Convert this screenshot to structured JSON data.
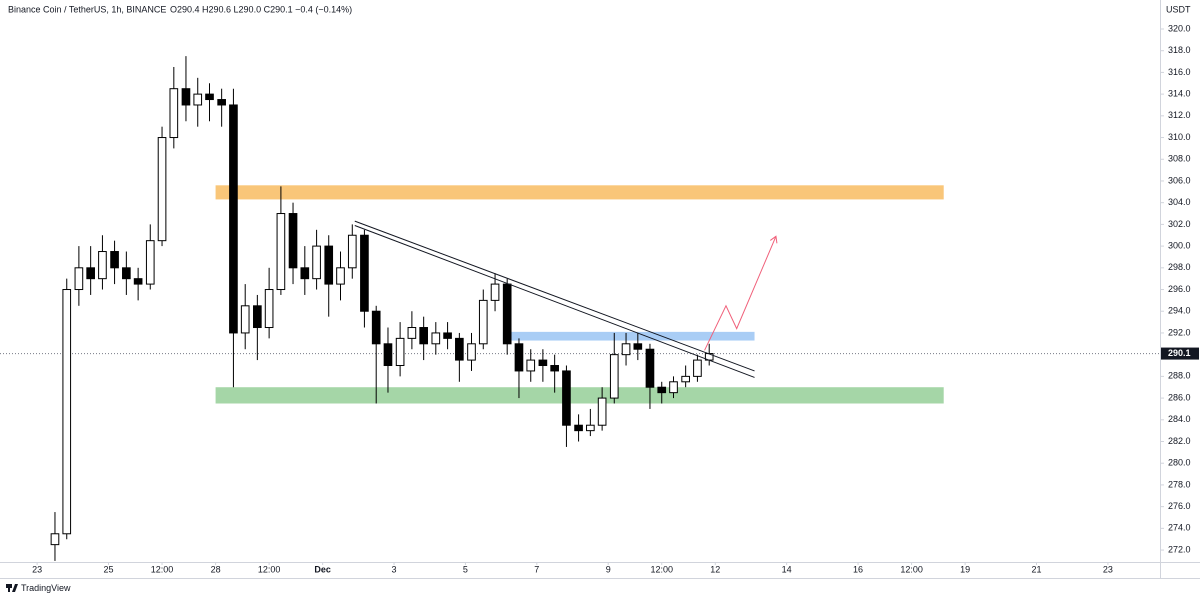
{
  "chart_data": {
    "type": "candlestick",
    "title": "Binance Coin / TetherUS, 1h, BINANCE",
    "ohlc_text": "O290.4 H290.6 L290.0 C290.1 −0.4 (−0.14%)",
    "y_axis_label": "USDT",
    "footer": "TradingView",
    "up_color": "#ffffff",
    "down_color": "#000000",
    "wick_color": "#000000",
    "x": [
      23.5,
      23.83,
      24.17,
      24.5,
      24.83,
      25.17,
      25.5,
      25.83,
      26.17,
      26.5,
      26.83,
      27.17,
      27.5,
      27.83,
      28.17,
      28.5,
      28.83,
      29.17,
      29.5,
      29.83,
      30.17,
      30.5,
      30.83,
      31.17,
      31.5,
      31.83,
      32.17,
      32.5,
      32.83,
      33.17,
      33.5,
      33.83,
      34.17,
      34.5,
      34.83,
      35.17,
      35.5,
      35.83,
      36.17,
      36.5,
      36.83,
      37.17,
      37.5,
      37.83,
      38.17,
      38.5,
      38.83,
      39.17,
      39.5,
      39.83,
      40.17,
      40.5,
      40.83,
      41.17,
      41.5,
      41.83
    ],
    "open": [
      272.5,
      273.5,
      296,
      298,
      297,
      299.5,
      298,
      297,
      296.5,
      300.5,
      310,
      314.5,
      313,
      314,
      313.5,
      313,
      292,
      294.5,
      292.5,
      296,
      303,
      298,
      297,
      300,
      296.5,
      298,
      301,
      294,
      291,
      289,
      291.5,
      292.5,
      291,
      292,
      291.5,
      289.5,
      291,
      295,
      296.5,
      291,
      288.5,
      289.5,
      289,
      288.5,
      283.5,
      283,
      283.5,
      286,
      290,
      291,
      290.5,
      287,
      286.5,
      287.5,
      288,
      289.5
    ],
    "high": [
      275.5,
      297,
      300,
      300,
      301,
      300.5,
      299.5,
      298,
      302,
      311,
      316.5,
      317.5,
      315.5,
      315,
      314.5,
      314.5,
      296.5,
      295.5,
      298,
      305.5,
      304,
      300,
      301.5,
      301,
      299.5,
      302,
      301.5,
      294.5,
      292.5,
      293,
      294,
      293.5,
      293,
      293,
      292,
      292,
      296,
      297.5,
      297,
      291.5,
      290.5,
      290.5,
      290,
      289,
      284.5,
      285,
      287,
      292,
      292,
      292,
      291,
      287.5,
      288,
      289,
      290,
      291
    ],
    "low": [
      271,
      273,
      294.5,
      295.5,
      296,
      296.5,
      295.5,
      295,
      296,
      300,
      309,
      311.5,
      311,
      311.5,
      311,
      287,
      290.5,
      289.5,
      291.5,
      295.5,
      296.5,
      295.5,
      296,
      293.5,
      295,
      297,
      292.5,
      285.5,
      286.5,
      288,
      290.5,
      289.5,
      290,
      290.5,
      287.5,
      288.5,
      290.5,
      294,
      290,
      286,
      287.5,
      287.5,
      286.5,
      281.5,
      282,
      282.5,
      283,
      285.5,
      289,
      289.5,
      285,
      285.5,
      286,
      287,
      287.5,
      289
    ],
    "close": [
      273.5,
      296,
      298,
      297,
      299.5,
      298,
      297,
      296.5,
      300.5,
      310,
      314.5,
      313,
      314,
      313.5,
      313,
      292,
      294.5,
      292.5,
      296,
      303,
      298,
      297,
      300,
      296.5,
      298,
      301,
      294,
      291,
      289,
      291.5,
      292.5,
      291,
      292,
      291.5,
      289.5,
      291,
      295,
      296.5,
      291,
      288.5,
      289.5,
      289,
      288.5,
      283.5,
      283,
      283.5,
      286,
      290,
      291,
      290.5,
      287,
      286.5,
      287.5,
      288,
      289.5,
      290.1
    ],
    "last_price": 290.1,
    "last_color": "#131722",
    "zones": [
      {
        "x": [
          28.0,
          48.4
        ],
        "y": [
          304.3,
          305.6
        ],
        "color": "#f9c679"
      },
      {
        "x": [
          28.0,
          48.4
        ],
        "y": [
          285.5,
          287.0
        ],
        "color": "#a5d6a7"
      },
      {
        "x": [
          36.05,
          43.1
        ],
        "y": [
          291.3,
          292.1
        ],
        "color": "#a9cdf5"
      }
    ],
    "trend_lines": [
      {
        "x": [
          31.9,
          43.1
        ],
        "y": [
          302.3,
          288.5
        ],
        "color": "#131722"
      },
      {
        "x": [
          31.9,
          43.1
        ],
        "y": [
          301.9,
          287.9
        ],
        "color": "#131722"
      }
    ],
    "projection": {
      "x": [
        41.7,
        42.3,
        42.6,
        43.7
      ],
      "y": [
        290.4,
        294.5,
        292.4,
        300.9
      ],
      "color": "#f0607a"
    },
    "xlim": [
      21.96,
      54.46
    ],
    "ylim": [
      270.9,
      322.67
    ],
    "xticks": [
      23,
      25,
      {
        "value": 26.5,
        "label": "12:00"
      },
      28,
      {
        "value": 29.5,
        "label": "12:00"
      },
      {
        "value": 31,
        "label": "Dec"
      },
      {
        "value": 33,
        "label": "3"
      },
      {
        "value": 35,
        "label": "5"
      },
      {
        "value": 37,
        "label": "7"
      },
      {
        "value": 39,
        "label": "9"
      },
      {
        "value": 40.5,
        "label": "12:00"
      },
      {
        "value": 42,
        "label": "12"
      },
      {
        "value": 44,
        "label": "14"
      },
      {
        "value": 46,
        "label": "16"
      },
      {
        "value": 47.5,
        "label": "12:00"
      },
      {
        "value": 49,
        "label": "19"
      },
      {
        "value": 51,
        "label": "21"
      },
      {
        "value": 53,
        "label": "23"
      }
    ],
    "yticks": [
      {
        "value": 272,
        "label": "272.0"
      },
      {
        "value": 274,
        "label": "274.0"
      },
      {
        "value": 276,
        "label": "276.0"
      },
      {
        "value": 278,
        "label": "278.0"
      },
      {
        "value": 280,
        "label": "280.0"
      },
      {
        "value": 282,
        "label": "282.0"
      },
      {
        "value": 284,
        "label": "284.0"
      },
      {
        "value": 286,
        "label": "286.0"
      },
      {
        "value": 288,
        "label": "288.0"
      },
      {
        "value": 290,
        "label": "290.0"
      },
      {
        "value": 292,
        "label": "292.0"
      },
      {
        "value": 294,
        "label": "294.0"
      },
      {
        "value": 296,
        "label": "296.0"
      },
      {
        "value": 298,
        "label": "298.0"
      },
      {
        "value": 300,
        "label": "300.0"
      },
      {
        "value": 302,
        "label": "302.0"
      },
      {
        "value": 304,
        "label": "304.0"
      },
      {
        "value": 306,
        "label": "306.0"
      },
      {
        "value": 308,
        "label": "308.0"
      },
      {
        "value": 310,
        "label": "310.0"
      },
      {
        "value": 312,
        "label": "312.0"
      },
      {
        "value": 314,
        "label": "314.0"
      },
      {
        "value": 316,
        "label": "316.0"
      },
      {
        "value": 318,
        "label": "318.0"
      },
      {
        "value": 320,
        "label": "320.0"
      }
    ]
  }
}
